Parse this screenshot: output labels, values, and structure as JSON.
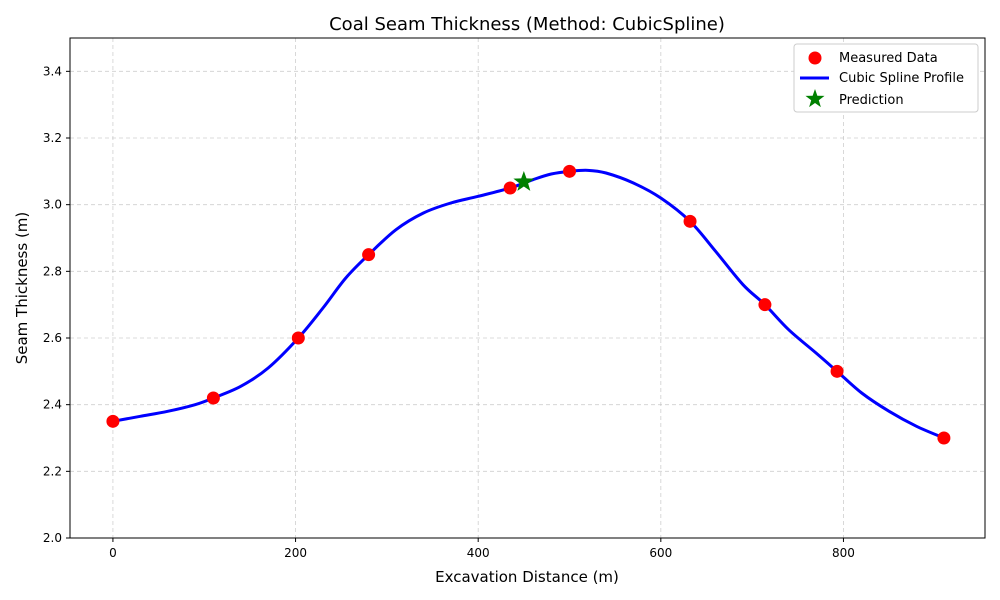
{
  "chart_data": {
    "type": "line",
    "title": "Coal Seam Thickness (Method: CubicSpline)",
    "xlabel": "Excavation Distance (m)",
    "ylabel": "Seam Thickness (m)",
    "xlim": [
      -47,
      955
    ],
    "ylim": [
      2.0,
      3.5
    ],
    "xticks": [
      0,
      200,
      400,
      600,
      800
    ],
    "yticks": [
      2.0,
      2.2,
      2.4,
      2.6,
      2.8,
      3.0,
      3.2,
      3.4
    ],
    "xtick_labels": [
      "0",
      "200",
      "400",
      "600",
      "800"
    ],
    "ytick_labels": [
      "2.0",
      "2.2",
      "2.4",
      "2.6",
      "2.8",
      "3.0",
      "3.2",
      "3.4"
    ],
    "grid": true,
    "legend_position": "top-right",
    "series": [
      {
        "name": "Measured Data",
        "kind": "scatter",
        "color": "#ff0000",
        "x": [
          0,
          110,
          203,
          280,
          435,
          500,
          632,
          714,
          793,
          910
        ],
        "y": [
          2.35,
          2.42,
          2.6,
          2.85,
          3.05,
          3.1,
          2.95,
          2.7,
          2.5,
          2.3
        ]
      },
      {
        "name": "Cubic Spline Profile",
        "kind": "line",
        "color": "#0000ff",
        "x": [
          0,
          30,
          60,
          90,
          110,
          140,
          170,
          203,
          230,
          255,
          280,
          310,
          340,
          370,
          400,
          435,
          460,
          480,
          500,
          520,
          540,
          570,
          600,
          632,
          660,
          690,
          714,
          740,
          770,
          793,
          820,
          850,
          880,
          910
        ],
        "y": [
          2.35,
          2.365,
          2.38,
          2.4,
          2.42,
          2.455,
          2.51,
          2.6,
          2.69,
          2.78,
          2.85,
          2.925,
          2.975,
          3.005,
          3.025,
          3.05,
          3.075,
          3.092,
          3.1,
          3.103,
          3.095,
          3.065,
          3.02,
          2.95,
          2.86,
          2.76,
          2.7,
          2.625,
          2.555,
          2.5,
          2.435,
          2.38,
          2.335,
          2.3
        ]
      },
      {
        "name": "Prediction",
        "kind": "marker",
        "color": "#008000",
        "x": [
          450
        ],
        "y": [
          3.068
        ]
      }
    ]
  }
}
